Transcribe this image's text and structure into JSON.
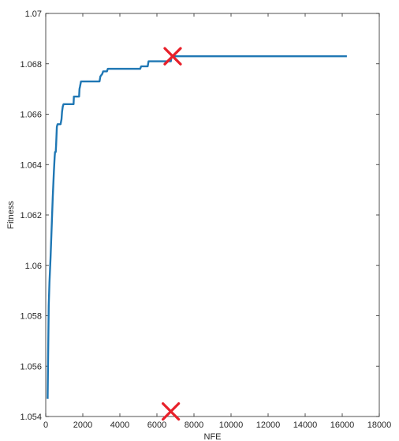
{
  "chart_data": {
    "type": "line",
    "xlabel": "NFE",
    "ylabel": "Fitness",
    "xlim": [
      0,
      18000
    ],
    "ylim": [
      1.054,
      1.07
    ],
    "xticks": [
      0,
      2000,
      4000,
      6000,
      8000,
      10000,
      12000,
      14000,
      16000,
      18000
    ],
    "xtick_labels": [
      "0",
      "2000",
      "4000",
      "6000",
      "8000",
      "10000",
      "12000",
      "14000",
      "16000",
      "18000"
    ],
    "yticks": [
      1.054,
      1.056,
      1.058,
      1.06,
      1.062,
      1.064,
      1.066,
      1.068,
      1.07
    ],
    "ytick_labels": [
      "1.054",
      "1.056",
      "1.058",
      "1.06",
      "1.062",
      "1.064",
      "1.066",
      "1.068",
      "1.07"
    ],
    "grid": false,
    "series": [
      {
        "color": "#1f77b4",
        "x": [
          100,
          120,
          160,
          200,
          260,
          320,
          380,
          440,
          480,
          500,
          540,
          560,
          600,
          640,
          700,
          800,
          850,
          880,
          920,
          960,
          1000,
          1050,
          1100,
          1500,
          1520,
          1800,
          1820,
          1850,
          1900,
          2000,
          2050,
          2900,
          2950,
          3050,
          3100,
          3300,
          3350,
          3500,
          3550,
          3900,
          3950,
          4200,
          4250,
          5100,
          5150,
          5500,
          5550,
          5650,
          5700,
          6750,
          6800,
          10500,
          10550,
          16250
        ],
        "y": [
          1.0547,
          1.0558,
          1.0584,
          1.0593,
          1.0603,
          1.0615,
          1.0627,
          1.0637,
          1.0643,
          1.0645,
          1.0645,
          1.0648,
          1.0655,
          1.0656,
          1.0656,
          1.0656,
          1.0658,
          1.0661,
          1.0663,
          1.0664,
          1.0664,
          1.0664,
          1.0664,
          1.0664,
          1.0667,
          1.0667,
          1.067,
          1.0671,
          1.0673,
          1.0673,
          1.0673,
          1.0673,
          1.0675,
          1.0676,
          1.0677,
          1.0677,
          1.0678,
          1.0678,
          1.0678,
          1.0678,
          1.0678,
          1.0678,
          1.0678,
          1.0678,
          1.0679,
          1.0679,
          1.0681,
          1.0681,
          1.0681,
          1.0681,
          1.0683,
          1.0683,
          1.0683,
          1.0683
        ]
      }
    ],
    "markers": [
      {
        "symbol": "x",
        "color": "#e8202a",
        "x": 6850,
        "y": 1.0683
      },
      {
        "symbol": "x",
        "color": "#e8202a",
        "x": 6750,
        "y": 1.0542
      }
    ]
  }
}
